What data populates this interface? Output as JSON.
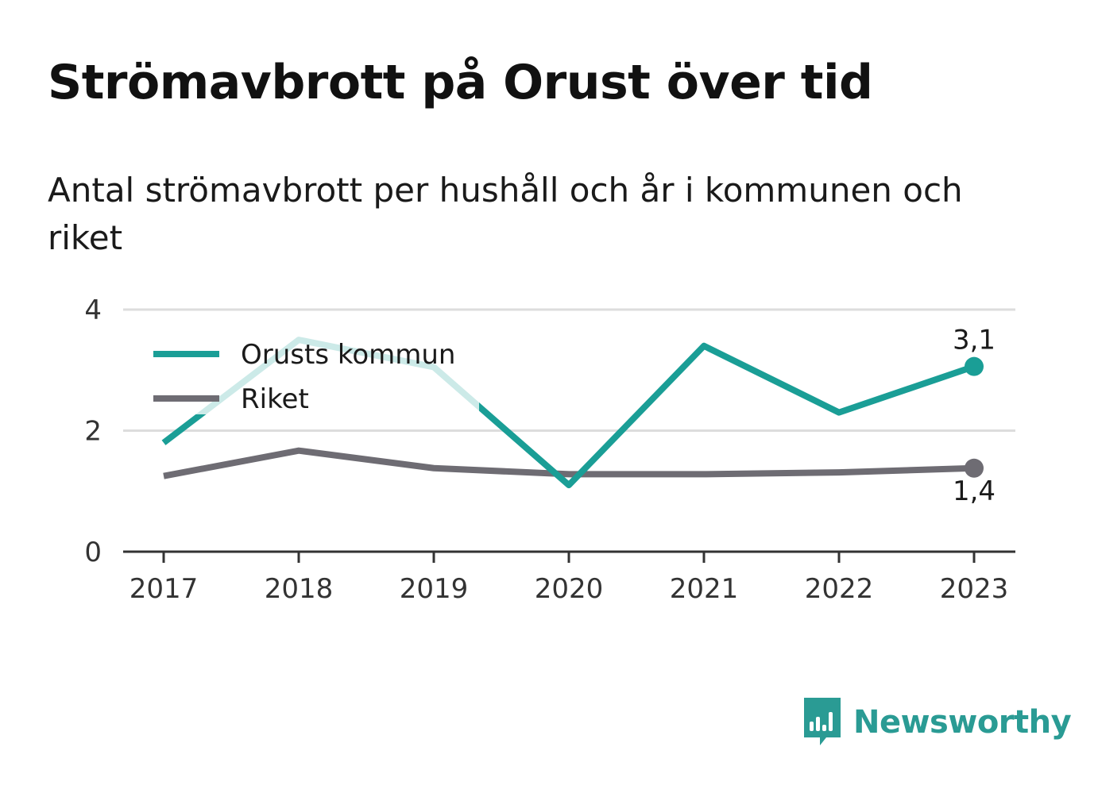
{
  "title": "Strömavbrott på Orust över tid",
  "subtitle": "Antal strömavbrott per hushåll och år i kommunen och riket",
  "brand": {
    "name": "Newsworthy",
    "icon": "bar-chart-speech-bubble-icon",
    "color": "#2a9b94"
  },
  "chart_data": {
    "type": "line",
    "title": "Strömavbrott på Orust över tid",
    "subtitle": "Antal strömavbrott per hushåll och år i kommunen och riket",
    "xlabel": "",
    "ylabel": "",
    "x": [
      "2017",
      "2018",
      "2019",
      "2020",
      "2021",
      "2022",
      "2023"
    ],
    "y_ticks": [
      "0",
      "2",
      "4"
    ],
    "ylim": [
      0,
      4
    ],
    "grid": true,
    "legend": "top-left",
    "series": [
      {
        "name": "Orusts kommun",
        "color": "#1a9e96",
        "values": [
          1.8,
          3.5,
          3.05,
          1.1,
          3.4,
          2.3,
          3.06
        ],
        "end_label": "3,1"
      },
      {
        "name": "Riket",
        "color": "#6e6c73",
        "values": [
          1.25,
          1.67,
          1.38,
          1.28,
          1.28,
          1.31,
          1.38
        ],
        "end_label": "1,4"
      }
    ]
  }
}
